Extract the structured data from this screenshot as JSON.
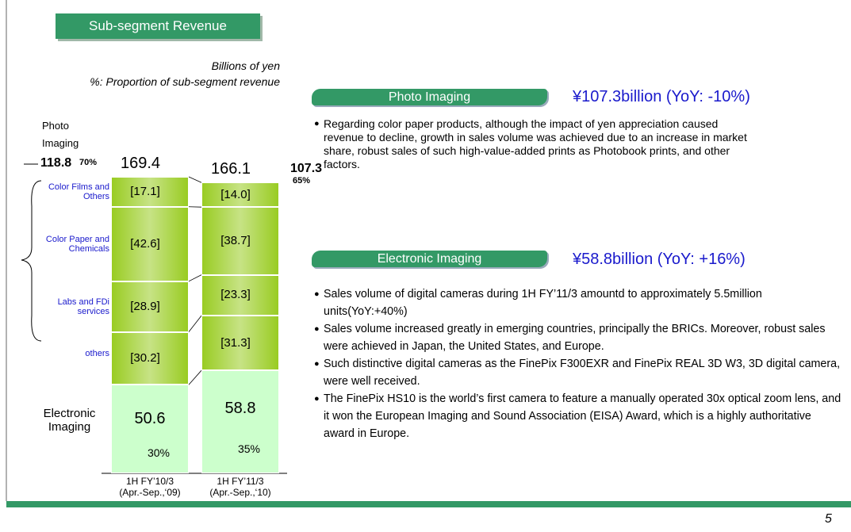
{
  "header": {
    "title": "Sub-segment Revenue",
    "unit": "Billions of yen",
    "note": "%: Proportion of sub-segment revenue"
  },
  "chart_data": {
    "type": "stacked_bar",
    "categories": [
      "1H FY’10/3",
      "1H FY’11/3"
    ],
    "category_periods": [
      "(Apr.-Sep.,‘09)",
      "(Apr.-Sep.,‘10)"
    ],
    "totals": [
      169.4,
      166.1
    ],
    "group": {
      "name": "Photo Imaging",
      "values": [
        118.8,
        107.3
      ],
      "shares": [
        70,
        65
      ],
      "share_labels": [
        "70%",
        "65%"
      ]
    },
    "series": [
      {
        "name": "Electronic Imaging",
        "color": "#ccffcc",
        "values": [
          50.6,
          58.8
        ],
        "shares": [
          30,
          35
        ],
        "share_labels": [
          "30%",
          "35%"
        ]
      },
      {
        "name": "others",
        "color": "#99cc22",
        "values": [
          30.2,
          31.3
        ],
        "value_labels": [
          "[30.2]",
          "[31.3]"
        ]
      },
      {
        "name": "Labs and FDi services",
        "color": "#99cc22",
        "values": [
          28.9,
          23.3
        ],
        "value_labels": [
          "[28.9]",
          "[23.3]"
        ]
      },
      {
        "name": "Color Paper and Chemicals",
        "color": "#99cc22",
        "values": [
          42.6,
          38.7
        ],
        "value_labels": [
          "[42.6]",
          "[38.7]"
        ]
      },
      {
        "name": "Color Films and Others",
        "color": "#99cc22",
        "values": [
          17.1,
          14.0
        ],
        "value_labels": [
          "[17.1]",
          "[14.0]"
        ]
      }
    ]
  },
  "sections": [
    {
      "title": "Photo Imaging",
      "amount": "¥107.3billion (YoY: -10%)",
      "bullets": [
        "Regarding color paper products, although the impact of yen appreciation caused revenue to decline, growth in sales volume was achieved due to an increase in market share, robust sales of such high-value-added prints as Photobook prints, and other factors."
      ]
    },
    {
      "title": "Electronic Imaging",
      "amount": "¥58.8billion (YoY: +16%)",
      "bullets": [
        "Sales volume of digital cameras during 1H FY’11/3 amountd to approximately 5.5million units(YoY:+40%)",
        "Sales volume increased greatly in emerging countries, principally the BRICs. Moreover, robust sales were achieved in Japan, the United States, and Europe.",
        "Such distinctive digital cameras as the FinePix F300EXR and FinePix REAL 3D W3,  3D digital camera, were well received.",
        "The FinePix HS10 is the world’s first camera to feature a manually operated 30x optical zoom lens, and it won the European Imaging and Sound Association (EISA) Award, which is a highly authoritative award in Europe."
      ]
    }
  ],
  "page_number": "5"
}
